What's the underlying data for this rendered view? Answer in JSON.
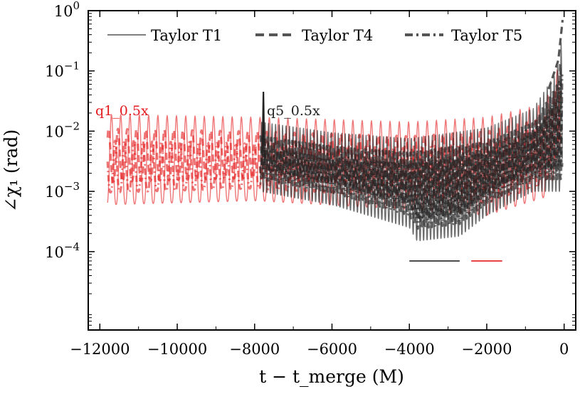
{
  "chart_data": {
    "type": "line",
    "title": "",
    "xlabel": "t − t_merge (M)",
    "ylabel": "∠χ₁ (rad)",
    "yscale": "log",
    "xlim": [
      -12300,
      300
    ],
    "ylim": [
      5e-06,
      1
    ],
    "x_ticks": [
      -12000,
      -10000,
      -8000,
      -6000,
      -4000,
      -2000,
      0
    ],
    "x_tick_labels": [
      "−12000",
      "−10000",
      "−8000",
      "−6000",
      "−4000",
      "−2000",
      "0"
    ],
    "y_ticks": [
      1,
      0.1,
      0.01,
      0.001,
      0.0001
    ],
    "y_tick_labels": [
      {
        "base": "10",
        "exp": "0"
      },
      {
        "base": "10",
        "exp": "−1"
      },
      {
        "base": "10",
        "exp": "−2"
      },
      {
        "base": "10",
        "exp": "−3"
      },
      {
        "base": "10",
        "exp": "−4"
      }
    ],
    "legend": {
      "location": "top",
      "entries": [
        {
          "label": "Taylor T1",
          "style": "solid"
        },
        {
          "label": "Taylor T4",
          "style": "dashed"
        },
        {
          "label": "Taylor T5",
          "style": "dashdot"
        }
      ]
    },
    "annotations": [
      {
        "text": "q1_0.5x",
        "color": "#e41a1c",
        "x": -11850,
        "y": 0.03
      },
      {
        "text": "q5_0.5x",
        "color": "#222222",
        "x": -7800,
        "y": 0.03
      }
    ],
    "series": [
      {
        "name": "q1_0.5x",
        "color": "#e41a1c",
        "x_start": -11800,
        "x_end": -100,
        "oscillation_period": 240,
        "envelope_upper": {
          "x": [
            -11800,
            -8000,
            -4000,
            -2000,
            -500,
            -100
          ],
          "y": [
            0.02,
            0.018,
            0.015,
            0.018,
            0.03,
            0.15
          ]
        },
        "envelope_lower": {
          "x": [
            -11800,
            -8000,
            -4000,
            -2000,
            -500,
            -100
          ],
          "y": [
            0.0006,
            0.0007,
            0.0005,
            0.0004,
            0.0008,
            0.003
          ]
        }
      },
      {
        "name": "q5_0.5x",
        "color": "#222222",
        "x_start": -7850,
        "x_end": -50,
        "spike": {
          "x": -7800,
          "y": 0.045
        },
        "oscillation_period": 90,
        "envelope_upper": {
          "x": [
            -7850,
            -6000,
            -4000,
            -2000,
            -800,
            -200,
            -50
          ],
          "y": [
            0.015,
            0.01,
            0.008,
            0.012,
            0.025,
            0.1,
            0.4
          ]
        },
        "envelope_lower": {
          "x": [
            -7850,
            -6000,
            -4000,
            -3800,
            -2700,
            -2000,
            -800
          ],
          "y": [
            0.001,
            0.0006,
            0.00025,
            0.00015,
            0.00018,
            0.0004,
            0.001
          ]
        }
      }
    ],
    "bottom_right_markers": [
      {
        "series": "q5_0.5x",
        "color": "#222222",
        "x_from": -4000,
        "x_to": -2700,
        "y": 7e-05
      },
      {
        "series": "q1_0.5x",
        "color": "#e41a1c",
        "x_from": -2400,
        "x_to": -1600,
        "y": 7e-05
      }
    ]
  }
}
